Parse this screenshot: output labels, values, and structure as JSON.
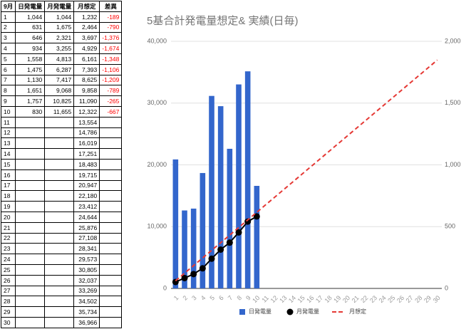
{
  "table": {
    "header": [
      "9月",
      "日発電量",
      "月発電量",
      "月想定",
      "差異"
    ],
    "rows": [
      [
        "1",
        "1,044",
        "1,044",
        "1,232",
        "-189"
      ],
      [
        "2",
        "631",
        "1,675",
        "2,464",
        "-790"
      ],
      [
        "3",
        "646",
        "2,321",
        "3,697",
        "-1,376"
      ],
      [
        "4",
        "934",
        "3,255",
        "4,929",
        "-1,674"
      ],
      [
        "5",
        "1,558",
        "4,813",
        "6,161",
        "-1,348"
      ],
      [
        "6",
        "1,475",
        "6,287",
        "7,393",
        "-1,106"
      ],
      [
        "7",
        "1,130",
        "7,417",
        "8,625",
        "-1,209"
      ],
      [
        "8",
        "1,651",
        "9,068",
        "9,858",
        "-789"
      ],
      [
        "9",
        "1,757",
        "10,825",
        "11,090",
        "-265"
      ],
      [
        "10",
        "830",
        "11,655",
        "12,322",
        "-667"
      ],
      [
        "11",
        "",
        "",
        "13,554",
        ""
      ],
      [
        "12",
        "",
        "",
        "14,786",
        ""
      ],
      [
        "13",
        "",
        "",
        "16,019",
        ""
      ],
      [
        "14",
        "",
        "",
        "17,251",
        ""
      ],
      [
        "15",
        "",
        "",
        "18,483",
        ""
      ],
      [
        "16",
        "",
        "",
        "19,715",
        ""
      ],
      [
        "17",
        "",
        "",
        "20,947",
        ""
      ],
      [
        "18",
        "",
        "",
        "22,180",
        ""
      ],
      [
        "19",
        "",
        "",
        "23,412",
        ""
      ],
      [
        "20",
        "",
        "",
        "24,644",
        ""
      ],
      [
        "21",
        "",
        "",
        "25,876",
        ""
      ],
      [
        "22",
        "",
        "",
        "27,108",
        ""
      ],
      [
        "23",
        "",
        "",
        "28,341",
        ""
      ],
      [
        "24",
        "",
        "",
        "29,573",
        ""
      ],
      [
        "25",
        "",
        "",
        "30,805",
        ""
      ],
      [
        "26",
        "",
        "",
        "32,037",
        ""
      ],
      [
        "27",
        "",
        "",
        "33,269",
        ""
      ],
      [
        "28",
        "",
        "",
        "34,502",
        ""
      ],
      [
        "29",
        "",
        "",
        "35,734",
        ""
      ],
      [
        "30",
        "",
        "",
        "36,966",
        ""
      ]
    ]
  },
  "chart_data": {
    "type": "combo",
    "title": "5基合計発電量想定& 実績(日毎)",
    "categories": [
      1,
      2,
      3,
      4,
      5,
      6,
      7,
      8,
      9,
      10,
      11,
      12,
      13,
      14,
      15,
      16,
      17,
      18,
      19,
      20,
      21,
      22,
      23,
      24,
      25,
      26,
      27,
      28,
      29,
      30
    ],
    "ylim": [
      0,
      40000
    ],
    "yticks": [
      0,
      {
        "value": 10000,
        "label": "10,000"
      },
      {
        "value": 20000,
        "label": "20,000"
      },
      {
        "value": 30000,
        "label": "30,000"
      },
      {
        "value": 40000,
        "label": "40,000"
      }
    ],
    "y2lim": [
      0,
      2000
    ],
    "y2ticks": [
      0,
      500,
      {
        "value": 1000,
        "label": "1,000"
      },
      {
        "value": 1500,
        "label": "1,500"
      },
      {
        "value": 2000,
        "label": "2,000"
      }
    ],
    "grid": true,
    "legend": "bottom",
    "series": [
      {
        "name": "日発電量",
        "type": "bar",
        "axis": "y2",
        "color": "#3366cc",
        "values": [
          1044,
          631,
          646,
          934,
          1558,
          1475,
          1130,
          1651,
          1757,
          830,
          null,
          null,
          null,
          null,
          null,
          null,
          null,
          null,
          null,
          null,
          null,
          null,
          null,
          null,
          null,
          null,
          null,
          null,
          null,
          null
        ]
      },
      {
        "name": "月発電量",
        "type": "line",
        "markers": true,
        "color": "#000000",
        "values": [
          1044,
          1675,
          2321,
          3255,
          4813,
          6287,
          7417,
          9068,
          10825,
          11655,
          null,
          null,
          null,
          null,
          null,
          null,
          null,
          null,
          null,
          null,
          null,
          null,
          null,
          null,
          null,
          null,
          null,
          null,
          null,
          null
        ]
      },
      {
        "name": "月想定",
        "type": "line",
        "dashed": true,
        "color": "#e53935",
        "values": [
          1232,
          2464,
          3697,
          4929,
          6161,
          7393,
          8625,
          9858,
          11090,
          12322,
          13554,
          14786,
          16019,
          17251,
          18483,
          19715,
          20947,
          22180,
          23412,
          24644,
          25876,
          27108,
          28341,
          29573,
          30805,
          32037,
          33269,
          34502,
          35734,
          36966
        ]
      }
    ]
  }
}
